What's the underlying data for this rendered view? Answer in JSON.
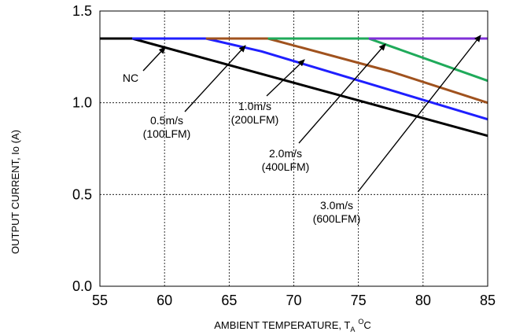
{
  "chart_data": {
    "type": "line",
    "xlabel": "AMBIENT TEMPERATURE, T",
    "xlabel_sub": "A",
    "xlabel_sup": "O",
    "xlabel_tail": "C",
    "ylabel": "OUTPUT CURRENT, Io (A)",
    "xlim": [
      55,
      85
    ],
    "ylim": [
      0.0,
      1.5
    ],
    "x_ticks": [
      "55",
      "60",
      "65",
      "70",
      "75",
      "80",
      "85"
    ],
    "y_ticks": [
      "0.0",
      "0.5",
      "1.0",
      "1.5"
    ],
    "grid": true,
    "series": [
      {
        "name": "NC",
        "color": "#000000",
        "points": [
          [
            55,
            1.35
          ],
          [
            57.5,
            1.35
          ],
          [
            85,
            0.82
          ]
        ]
      },
      {
        "name": "0.5m/s (100LFM)",
        "color": "#1f1fff",
        "points": [
          [
            57.5,
            1.35
          ],
          [
            63.2,
            1.35
          ],
          [
            67.5,
            1.28
          ],
          [
            85,
            0.91
          ]
        ]
      },
      {
        "name": "1.0m/s (200LFM)",
        "color": "#a0521e",
        "points": [
          [
            63.2,
            1.35
          ],
          [
            68,
            1.35
          ],
          [
            77.5,
            1.17
          ],
          [
            85,
            1.0
          ]
        ]
      },
      {
        "name": "2.0m/s (400LFM)",
        "color": "#1faa5a",
        "points": [
          [
            68,
            1.35
          ],
          [
            75.8,
            1.35
          ],
          [
            85,
            1.12
          ]
        ]
      },
      {
        "name": "3.0m/s (600LFM)",
        "color": "#7f2fd8",
        "points": [
          [
            75.8,
            1.35
          ],
          [
            85,
            1.35
          ]
        ]
      }
    ],
    "annotations": [
      {
        "lines": [
          "NC"
        ]
      },
      {
        "lines": [
          "0.5m/s",
          "(100LFM)"
        ]
      },
      {
        "lines": [
          "1.0m/s",
          "(200LFM)"
        ]
      },
      {
        "lines": [
          "2.0m/s",
          "(400LFM)"
        ]
      },
      {
        "lines": [
          "3.0m/s",
          "(600LFM)"
        ]
      }
    ]
  }
}
